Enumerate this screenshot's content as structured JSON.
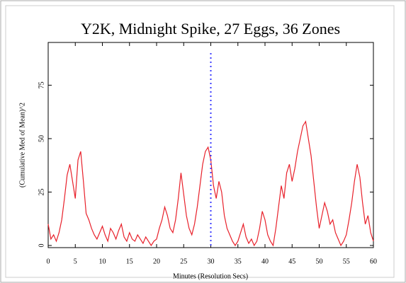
{
  "chart_data": {
    "type": "line",
    "title": "Y2K, Midnight Spike, 27 Eggs, 36 Zones",
    "x_label": "Minutes (Resolution Secs)",
    "y_label": "(Cumulative Med of Mean)^2",
    "x": [
      0,
      0.5,
      1,
      1.5,
      2,
      2.5,
      3,
      3.5,
      4,
      4.5,
      5,
      5.5,
      6,
      6.5,
      7,
      7.5,
      8,
      8.5,
      9,
      9.5,
      10,
      10.5,
      11,
      11.5,
      12,
      12.5,
      13,
      13.5,
      14,
      14.5,
      15,
      15.5,
      16,
      16.5,
      17,
      17.5,
      18,
      18.5,
      19,
      19.5,
      20,
      20.5,
      21,
      21.5,
      22,
      22.5,
      23,
      23.5,
      24,
      24.5,
      25,
      25.5,
      26,
      26.5,
      27,
      27.5,
      28,
      28.5,
      29,
      29.5,
      30,
      30.5,
      31,
      31.5,
      32,
      32.5,
      33,
      33.5,
      34,
      34.5,
      35,
      35.5,
      36,
      36.5,
      37,
      37.5,
      38,
      38.5,
      39,
      39.5,
      40,
      40.5,
      41,
      41.5,
      42,
      42.5,
      43,
      43.5,
      44,
      44.5,
      45,
      45.5,
      46,
      46.5,
      47,
      47.5,
      48,
      48.5,
      49,
      49.5,
      50,
      50.5,
      51,
      51.5,
      52,
      52.5,
      53,
      53.5,
      54,
      54.5,
      55,
      55.5,
      56,
      56.5,
      57,
      57.5,
      58,
      58.5,
      59,
      59.5,
      60
    ],
    "series": [
      {
        "color": "#e8202a",
        "values": [
          10,
          3,
          5,
          2,
          6,
          12,
          22,
          33,
          38,
          30,
          22,
          40,
          44,
          30,
          15,
          12,
          8,
          5,
          3,
          6,
          9,
          5,
          2,
          8,
          6,
          3,
          7,
          10,
          4,
          2,
          6,
          3,
          2,
          5,
          3,
          1,
          4,
          2,
          0,
          2,
          3,
          8,
          12,
          18,
          14,
          8,
          6,
          12,
          22,
          34,
          24,
          14,
          8,
          5,
          10,
          18,
          28,
          38,
          44,
          46,
          40,
          28,
          22,
          30,
          25,
          14,
          8,
          5,
          2,
          0,
          2,
          6,
          10,
          4,
          1,
          3,
          0,
          2,
          8,
          16,
          12,
          5,
          2,
          0,
          8,
          18,
          28,
          22,
          34,
          38,
          30,
          36,
          44,
          50,
          56,
          58,
          50,
          42,
          30,
          18,
          8,
          14,
          20,
          16,
          10,
          12,
          6,
          3,
          0,
          2,
          5,
          12,
          20,
          30,
          38,
          32,
          20,
          10,
          14,
          6,
          2
        ]
      }
    ],
    "vline": {
      "x": 30,
      "color": "#3a3aff"
    },
    "xlim": [
      0,
      60
    ],
    "xticks": [
      0,
      5,
      10,
      15,
      20,
      25,
      30,
      35,
      40,
      45,
      50,
      55,
      60
    ],
    "ylim": [
      -1,
      95
    ],
    "yticks": [
      0,
      25,
      50,
      75
    ]
  }
}
